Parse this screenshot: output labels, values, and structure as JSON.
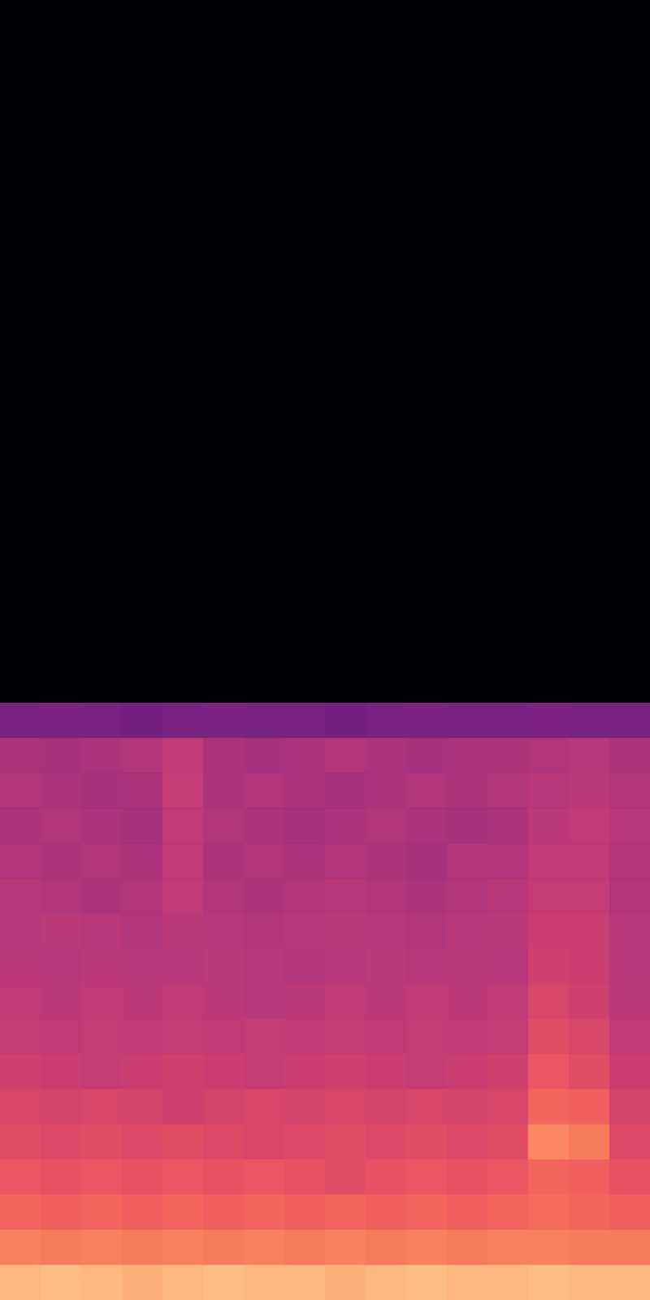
{
  "chart_data": {
    "type": "heatmap",
    "color": "magma",
    "tick_labels": false,
    "zlim": [
      -80,
      0
    ],
    "z": [
      [
        -80,
        -80,
        -80,
        -80,
        -80,
        -80,
        -80,
        -80,
        -80,
        -80,
        -80,
        -80,
        -80,
        -80,
        -80,
        -80
      ],
      [
        -80,
        -80,
        -80,
        -80,
        -80,
        -80,
        -80,
        -80,
        -80,
        -80,
        -80,
        -80,
        -80,
        -80,
        -80,
        -80
      ],
      [
        -80,
        -80,
        -80,
        -80,
        -80,
        -80,
        -80,
        -80,
        -80,
        -80,
        -80,
        -80,
        -80,
        -80,
        -80,
        -80
      ],
      [
        -80,
        -80,
        -80,
        -80,
        -80,
        -80,
        -80,
        -80,
        -80,
        -80,
        -80,
        -80,
        -80,
        -80,
        -80,
        -80
      ],
      [
        -80,
        -80,
        -80,
        -80,
        -80,
        -80,
        -80,
        -80,
        -80,
        -80,
        -80,
        -80,
        -80,
        -80,
        -80,
        -80
      ],
      [
        -80,
        -80,
        -80,
        -80,
        -80,
        -80,
        -80,
        -80,
        -80,
        -80,
        -80,
        -80,
        -80,
        -80,
        -80,
        -80
      ],
      [
        -80,
        -80,
        -80,
        -80,
        -80,
        -80,
        -80,
        -80,
        -80,
        -80,
        -80,
        -80,
        -80,
        -80,
        -80,
        -80
      ],
      [
        -80,
        -80,
        -80,
        -80,
        -80,
        -80,
        -80,
        -80,
        -80,
        -80,
        -80,
        -80,
        -80,
        -80,
        -80,
        -80
      ],
      [
        -80,
        -80,
        -80,
        -80,
        -80,
        -80,
        -80,
        -80,
        -80,
        -80,
        -80,
        -80,
        -80,
        -80,
        -80,
        -80
      ],
      [
        -80,
        -80,
        -80,
        -80,
        -80,
        -80,
        -80,
        -80,
        -80,
        -80,
        -80,
        -80,
        -80,
        -80,
        -80,
        -80
      ],
      [
        -80,
        -80,
        -80,
        -80,
        -80,
        -80,
        -80,
        -80,
        -80,
        -80,
        -80,
        -80,
        -80,
        -80,
        -80,
        -80
      ],
      [
        -80,
        -80,
        -80,
        -80,
        -80,
        -80,
        -80,
        -80,
        -80,
        -80,
        -80,
        -80,
        -80,
        -80,
        -80,
        -80
      ],
      [
        -80,
        -80,
        -80,
        -80,
        -80,
        -80,
        -80,
        -80,
        -80,
        -80,
        -80,
        -80,
        -80,
        -80,
        -80,
        -80
      ],
      [
        -80,
        -80,
        -80,
        -80,
        -80,
        -80,
        -80,
        -80,
        -80,
        -80,
        -80,
        -80,
        -80,
        -80,
        -80,
        -80
      ],
      [
        -80,
        -80,
        -80,
        -80,
        -80,
        -80,
        -80,
        -80,
        -80,
        -80,
        -80,
        -80,
        -80,
        -80,
        -80,
        -80
      ],
      [
        -80,
        -80,
        -80,
        -80,
        -80,
        -80,
        -80,
        -80,
        -80,
        -80,
        -80,
        -80,
        -80,
        -80,
        -80,
        -80
      ],
      [
        -80,
        -80,
        -80,
        -80,
        -80,
        -80,
        -80,
        -80,
        -80,
        -80,
        -80,
        -80,
        -80,
        -80,
        -80,
        -80
      ],
      [
        -80,
        -80,
        -80,
        -80,
        -80,
        -80,
        -80,
        -80,
        -80,
        -80,
        -80,
        -80,
        -80,
        -80,
        -80,
        -80
      ],
      [
        -80,
        -80,
        -80,
        -80,
        -80,
        -80,
        -80,
        -80,
        -80,
        -80,
        -80,
        -80,
        -80,
        -80,
        -80,
        -80
      ],
      [
        -80,
        -80,
        -80,
        -80,
        -80,
        -80,
        -80,
        -80,
        -80,
        -80,
        -80,
        -80,
        -80,
        -80,
        -80,
        -80
      ],
      [
        -52,
        -51,
        -52,
        -53,
        -52,
        -51,
        -52,
        -52,
        -53,
        -52,
        -51,
        -52,
        -52,
        -51,
        -52,
        -52
      ],
      [
        -42,
        -43,
        -42,
        -41,
        -38,
        -42,
        -43,
        -42,
        -41,
        -42,
        -43,
        -42,
        -42,
        -41,
        -40,
        -42
      ],
      [
        -41,
        -42,
        -43,
        -42,
        -37,
        -42,
        -41,
        -42,
        -43,
        -42,
        -41,
        -42,
        -41,
        -40,
        -39,
        -41
      ],
      [
        -42,
        -41,
        -42,
        -43,
        -38,
        -41,
        -42,
        -43,
        -42,
        -41,
        -42,
        -43,
        -42,
        -39,
        -38,
        -40
      ],
      [
        -41,
        -42,
        -41,
        -42,
        -38,
        -42,
        -41,
        -42,
        -41,
        -42,
        -43,
        -41,
        -41,
        -38,
        -38,
        -41
      ],
      [
        -40,
        -41,
        -42,
        -41,
        -38,
        -41,
        -42,
        -41,
        -40,
        -41,
        -42,
        -41,
        -40,
        -37,
        -37,
        -41
      ],
      [
        -40,
        -39,
        -40,
        -41,
        -39,
        -40,
        -41,
        -40,
        -39,
        -40,
        -41,
        -40,
        -39,
        -36,
        -36,
        -40
      ],
      [
        -39,
        -40,
        -39,
        -40,
        -40,
        -39,
        -40,
        -41,
        -40,
        -39,
        -40,
        -39,
        -40,
        -35,
        -36,
        -40
      ],
      [
        -38,
        -39,
        -38,
        -39,
        -38,
        -39,
        -40,
        -39,
        -38,
        -39,
        -38,
        -39,
        -38,
        -33,
        -35,
        -39
      ],
      [
        -37,
        -38,
        -37,
        -38,
        -37,
        -38,
        -37,
        -38,
        -37,
        -38,
        -37,
        -38,
        -37,
        -31,
        -33,
        -38
      ],
      [
        -35,
        -36,
        -37,
        -36,
        -35,
        -36,
        -37,
        -36,
        -35,
        -36,
        -37,
        -36,
        -35,
        -29,
        -31,
        -36
      ],
      [
        -33,
        -34,
        -33,
        -34,
        -35,
        -34,
        -33,
        -34,
        -33,
        -34,
        -33,
        -34,
        -33,
        -26,
        -27,
        -34
      ],
      [
        -31,
        -32,
        -31,
        -32,
        -31,
        -32,
        -33,
        -32,
        -31,
        -32,
        -31,
        -32,
        -31,
        -20,
        -22,
        -32
      ],
      [
        -29,
        -30,
        -29,
        -30,
        -29,
        -30,
        -29,
        -30,
        -31,
        -30,
        -29,
        -30,
        -29,
        -26,
        -27,
        -30
      ],
      [
        -26,
        -27,
        -26,
        -27,
        -26,
        -27,
        -26,
        -27,
        -26,
        -27,
        -26,
        -27,
        -26,
        -25,
        -26,
        -27
      ],
      [
        -21,
        -22,
        -21,
        -22,
        -21,
        -22,
        -21,
        -22,
        -21,
        -22,
        -21,
        -22,
        -21,
        -21,
        -22,
        -22
      ],
      [
        -12,
        -11,
        -12,
        -13,
        -12,
        -11,
        -12,
        -12,
        -13,
        -12,
        -11,
        -12,
        -12,
        -11,
        -12,
        -12
      ]
    ]
  }
}
